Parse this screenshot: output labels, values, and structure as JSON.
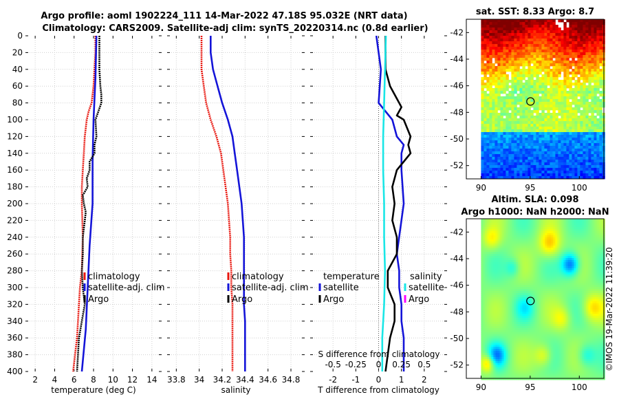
{
  "figure": {
    "title_line1": "Argo profile: aoml 1902224_111 14-Mar-2022 47.18S 95.032E (NRT data)",
    "title_line2": "Climatology: CARS2009. Satellite-adj clim: synTS_20220314.nc (0.8d earlier)",
    "watermark": "©IMOS 19-Mar-2022 11:39:20"
  },
  "colors": {
    "climatology": "#e8160e",
    "satellite": "#1414d8",
    "argo": "#000000",
    "satellite_salinity": "#19e6e6",
    "argo_salinity": "#ff00ff"
  },
  "chart_data": [
    {
      "id": "temperature",
      "type": "line",
      "xlabel": "temperature (deg C)",
      "xlim": [
        1,
        15
      ],
      "xticks": [
        2,
        4,
        6,
        8,
        10,
        12,
        14
      ],
      "ylim": [
        400,
        0
      ],
      "yticks": [
        0,
        20,
        40,
        60,
        80,
        100,
        120,
        140,
        160,
        180,
        200,
        220,
        240,
        260,
        280,
        300,
        320,
        340,
        360,
        380,
        400
      ],
      "grid": true,
      "legend": {
        "position": "bottom-right",
        "labels": [
          "climatology",
          "satellite-adj. clim",
          "Argo"
        ]
      },
      "series": [
        {
          "name": "climatology",
          "color": "climatology",
          "dashed": true,
          "depth": [
            0,
            20,
            40,
            60,
            80,
            90,
            100,
            120,
            140,
            160,
            180,
            200,
            240,
            280,
            300,
            320,
            360,
            400
          ],
          "values": [
            8.2,
            8.2,
            8.1,
            8.0,
            7.8,
            7.5,
            7.3,
            7.1,
            7.0,
            6.9,
            6.8,
            6.8,
            6.9,
            6.8,
            6.6,
            6.5,
            6.3,
            5.9
          ]
        },
        {
          "name": "satellite-adj. clim",
          "color": "satellite",
          "dashed": false,
          "depth": [
            0,
            50,
            100,
            150,
            200,
            250,
            300,
            350,
            400
          ],
          "values": [
            8.3,
            8.2,
            8.0,
            7.9,
            7.9,
            7.6,
            7.4,
            7.2,
            6.8
          ]
        },
        {
          "name": "Argo",
          "color": "argo",
          "dashed": true,
          "depth": [
            0,
            20,
            40,
            60,
            70,
            80,
            90,
            100,
            120,
            130,
            140,
            150,
            160,
            170,
            180,
            190,
            200,
            210,
            220,
            240,
            260,
            280,
            300,
            320,
            340,
            360,
            380,
            400
          ],
          "values": [
            8.6,
            8.6,
            8.6,
            8.7,
            8.8,
            8.8,
            8.5,
            8.2,
            8.3,
            8.1,
            8.1,
            7.6,
            7.6,
            7.3,
            7.4,
            6.9,
            7.0,
            7.2,
            7.1,
            6.9,
            6.9,
            6.8,
            6.9,
            7.1,
            6.8,
            6.5,
            6.4,
            6.3
          ]
        }
      ]
    },
    {
      "id": "salinity",
      "type": "line",
      "xlabel": "salinity",
      "xlim": [
        33.72,
        34.92
      ],
      "xticks": [
        33.8,
        34,
        34.2,
        34.4,
        34.6,
        34.8
      ],
      "ylim": [
        400,
        0
      ],
      "grid": true,
      "legend": {
        "position": "bottom-right",
        "labels": [
          "climatology",
          "satellite-adj. clim",
          "Argo"
        ]
      },
      "series": [
        {
          "name": "climatology",
          "color": "climatology",
          "dashed": true,
          "depth": [
            0,
            20,
            40,
            60,
            80,
            100,
            120,
            140,
            160,
            180,
            200,
            220,
            240,
            260,
            280,
            300,
            320,
            340,
            360,
            380,
            400
          ],
          "values": [
            34.02,
            34.02,
            34.02,
            34.04,
            34.06,
            34.1,
            34.15,
            34.19,
            34.21,
            34.23,
            34.25,
            34.26,
            34.27,
            34.27,
            34.28,
            34.28,
            34.29,
            34.29,
            34.29,
            34.29,
            34.29
          ]
        },
        {
          "name": "satellite-adj. clim",
          "color": "satellite",
          "dashed": false,
          "depth": [
            0,
            20,
            40,
            60,
            80,
            100,
            120,
            140,
            160,
            180,
            200,
            220,
            240,
            260,
            280,
            300,
            320,
            340,
            360,
            380,
            400
          ],
          "values": [
            34.1,
            34.1,
            34.12,
            34.16,
            34.2,
            34.25,
            34.29,
            34.31,
            34.33,
            34.35,
            34.37,
            34.38,
            34.39,
            34.39,
            34.39,
            34.39,
            34.39,
            34.4,
            34.4,
            34.4,
            34.4
          ]
        }
      ]
    },
    {
      "id": "difference",
      "type": "line",
      "xlabel": "T difference from climatology",
      "top_xlabel": "S difference from climatology",
      "xlim": [
        -3,
        3
      ],
      "xticks": [
        -2,
        -1,
        0,
        1,
        2
      ],
      "top_xlim": [
        -0.75,
        0.75
      ],
      "top_xticks": [
        -0.5,
        -0.25,
        0,
        0.25,
        0.5
      ],
      "top_xtick_labels": [
        "-0.5",
        "-0.25",
        "0",
        "0.25",
        "0.5"
      ],
      "ylim": [
        400,
        0
      ],
      "grid": true,
      "legend_temperature": {
        "title": "temperature",
        "labels": [
          "satellite",
          "Argo"
        ]
      },
      "legend_salinity": {
        "title": "salinity",
        "labels": [
          "satellite",
          "Argo"
        ]
      },
      "series": [
        {
          "name": "temperature satellite",
          "color": "satellite",
          "axis": "T",
          "depth": [
            0,
            40,
            80,
            100,
            120,
            130,
            140,
            160,
            200,
            260,
            280,
            300,
            320,
            340,
            360,
            380,
            400
          ],
          "values": [
            -0.1,
            0.1,
            0.0,
            0.6,
            0.8,
            1.1,
            1.0,
            1.0,
            1.1,
            0.8,
            0.9,
            0.9,
            1.0,
            1.0,
            1.1,
            1.1,
            1.1
          ]
        },
        {
          "name": "temperature Argo",
          "color": "argo",
          "axis": "T",
          "depth": [
            0,
            20,
            40,
            60,
            80,
            85,
            95,
            100,
            120,
            130,
            140,
            150,
            160,
            170,
            180,
            200,
            220,
            240,
            260,
            280,
            300,
            320,
            340,
            360,
            380,
            400
          ],
          "values": [
            0.3,
            0.3,
            0.3,
            0.5,
            0.9,
            1.0,
            0.8,
            1.1,
            1.4,
            1.3,
            1.4,
            1.1,
            0.8,
            0.7,
            0.6,
            0.7,
            0.6,
            0.8,
            0.8,
            0.4,
            0.4,
            0.7,
            0.7,
            0.5,
            0.4,
            0.3
          ]
        },
        {
          "name": "salinity satellite",
          "color": "satellite_salinity",
          "axis": "S",
          "depth": [
            0,
            40,
            80,
            120,
            160,
            200,
            240,
            280,
            320,
            360,
            400
          ],
          "values": [
            0.08,
            0.07,
            0.06,
            0.05,
            0.05,
            0.06,
            0.06,
            0.07,
            0.06,
            0.04,
            0.04
          ]
        },
        {
          "name": "salinity Argo",
          "color": "argo_salinity",
          "axis": "S",
          "note": "legend only",
          "depth": [],
          "values": []
        }
      ]
    },
    {
      "id": "sst_map",
      "type": "heatmap",
      "title": "sat. SST: 8.33 Argo: 8.7",
      "xlim": [
        88.5,
        102.5
      ],
      "ylim": [
        -53,
        -41
      ],
      "xticks": [
        90,
        95,
        100
      ],
      "yticks": [
        -42,
        -44,
        -46,
        -48,
        -50,
        -52
      ],
      "marker": {
        "lon": 95.03,
        "lat": -47.18
      },
      "palette": "jet"
    },
    {
      "id": "sla_map",
      "type": "heatmap",
      "title_line1": "Altim. SLA: 0.098",
      "title_line2": "Argo h1000: NaN h2000: NaN",
      "xlim": [
        88.5,
        102.5
      ],
      "ylim": [
        -53,
        -41
      ],
      "xticks": [
        90,
        95,
        100
      ],
      "yticks": [
        -42,
        -44,
        -46,
        -48,
        -50,
        -52
      ],
      "marker": {
        "lon": 95.03,
        "lat": -47.18
      },
      "palette": "jet"
    }
  ]
}
